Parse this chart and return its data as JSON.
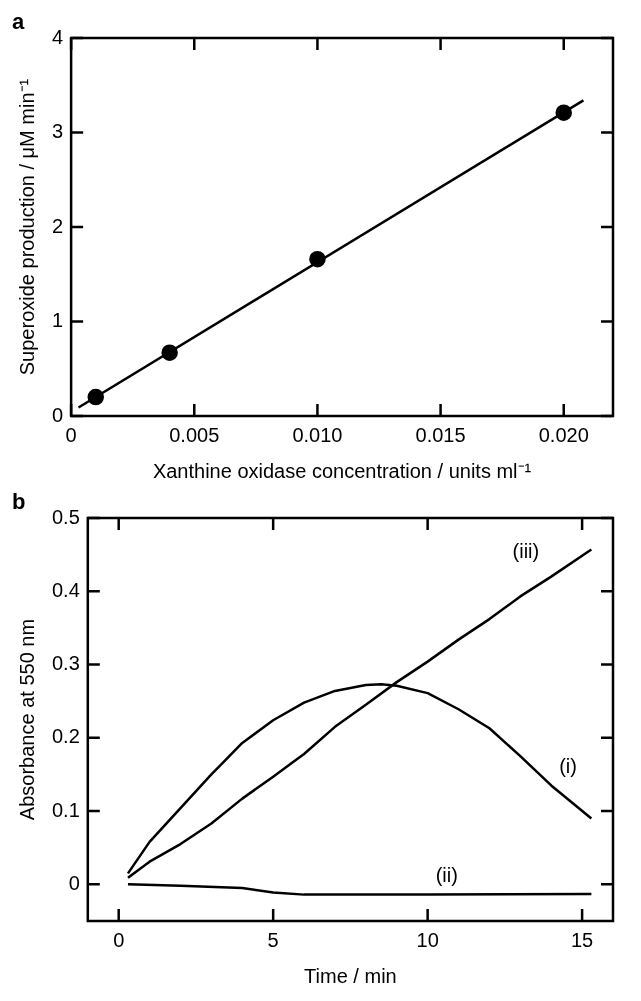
{
  "chart_data": [
    {
      "type": "scatter",
      "title": "a",
      "xlabel": "Xanthine oxidase concentration / units ml⁻¹",
      "ylabel": "Superoxide production / μM min⁻¹",
      "xlim": [
        0,
        0.022
      ],
      "ylim": [
        0,
        4
      ],
      "xticks": [
        0,
        0.005,
        {
          "value": 0.01,
          "label": "0.010"
        },
        {
          "value": 0.015,
          "label": "0.015"
        },
        {
          "value": 0.02,
          "label": "0.020"
        }
      ],
      "yticks": [
        0,
        1,
        2,
        3,
        4
      ],
      "marker": "circle",
      "series": [
        {
          "color": "#000000",
          "x": [
            0.001,
            0.004,
            0.01,
            0.02
          ],
          "values": [
            0.2,
            0.67,
            1.66,
            3.21
          ]
        },
        {
          "type": "line",
          "color": "#000000",
          "marker": "none",
          "x": [
            0.0003,
            0.0208
          ],
          "values": [
            0.09,
            3.34
          ]
        }
      ]
    },
    {
      "type": "line",
      "title": "b",
      "xlabel": "Time / min",
      "ylabel": "Absorbance at 550 nm",
      "xlim": [
        -1,
        16
      ],
      "ylim": [
        -0.05,
        0.5
      ],
      "xticks": [
        0,
        5,
        10,
        15
      ],
      "yticks": [
        0,
        0.1,
        0.2,
        0.3,
        0.4,
        0.5
      ],
      "marker": "none",
      "series": [
        {
          "name": "(i)",
          "color": "#000000",
          "x": [
            0.3,
            1,
            2,
            3,
            4,
            5,
            6,
            7,
            8,
            8.5,
            9,
            10,
            11,
            12,
            13,
            14,
            15.3
          ],
          "values": [
            0.015,
            0.058,
            0.104,
            0.15,
            0.193,
            0.224,
            0.248,
            0.264,
            0.272,
            0.273,
            0.271,
            0.261,
            0.239,
            0.213,
            0.175,
            0.135,
            0.09
          ]
        },
        {
          "name": "(ii)",
          "color": "#000000",
          "x": [
            0.3,
            2,
            4,
            5,
            6,
            10,
            15.3
          ],
          "values": [
            0,
            -0.002,
            -0.005,
            -0.011,
            -0.014,
            -0.014,
            -0.013
          ]
        },
        {
          "name": "(iii)",
          "color": "#000000",
          "x": [
            0.3,
            1,
            2,
            3,
            4,
            5,
            6,
            7,
            8,
            9,
            10,
            11,
            12,
            13,
            14,
            15.3
          ],
          "values": [
            0.009,
            0.031,
            0.055,
            0.083,
            0.117,
            0.147,
            0.178,
            0.215,
            0.245,
            0.276,
            0.304,
            0.334,
            0.362,
            0.393,
            0.42,
            0.457
          ]
        }
      ]
    }
  ]
}
